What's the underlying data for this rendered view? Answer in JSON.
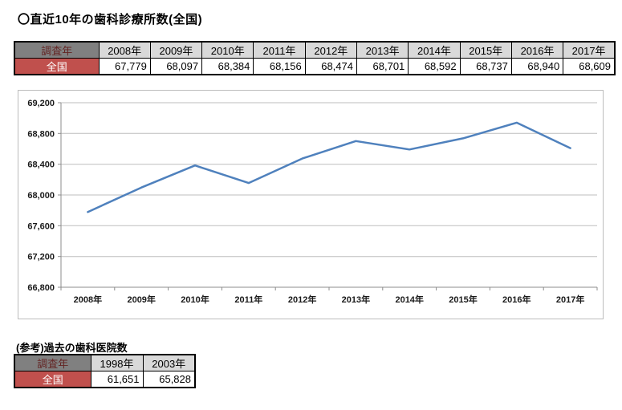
{
  "title": "〇直近10年の歯科診療所数(全国)",
  "main_table": {
    "header_label": "調査年",
    "row_label": "全国",
    "years": [
      "2008年",
      "2009年",
      "2010年",
      "2011年",
      "2012年",
      "2013年",
      "2014年",
      "2015年",
      "2016年",
      "2017年"
    ],
    "values": [
      "67,779",
      "68,097",
      "68,384",
      "68,156",
      "68,474",
      "68,701",
      "68,592",
      "68,737",
      "68,940",
      "68,609"
    ]
  },
  "chart_data": {
    "type": "line",
    "title": "",
    "xlabel": "",
    "ylabel": "",
    "categories": [
      "2008年",
      "2009年",
      "2010年",
      "2011年",
      "2012年",
      "2013年",
      "2014年",
      "2015年",
      "2016年",
      "2017年"
    ],
    "series": [
      {
        "name": "全国",
        "values": [
          67779,
          68097,
          68384,
          68156,
          68474,
          68701,
          68592,
          68737,
          68940,
          68609
        ]
      }
    ],
    "ylim": [
      66800,
      69200
    ],
    "ytick_step": 400,
    "ytick_labels": [
      "66,800",
      "67,200",
      "67,600",
      "68,000",
      "68,400",
      "68,800",
      "69,200"
    ],
    "grid": true,
    "legend_position": "none"
  },
  "reference": {
    "label": "(参考)過去の歯科医院数",
    "header_label": "調査年",
    "row_label": "全国",
    "years": [
      "1998年",
      "2003年"
    ],
    "values": [
      "61,651",
      "65,828"
    ]
  },
  "colors": {
    "line": "#4F81BD",
    "gridline": "#BDBDBD",
    "axis": "#8C8C8C",
    "survey_header_bg": "#808080",
    "survey_header_text": "#632423",
    "year_header_bg": "#D9D9D9",
    "row_label_bg": "#C0504D",
    "row_label_text": "#FFFFFF",
    "axis_text": "#1A1A1A"
  }
}
